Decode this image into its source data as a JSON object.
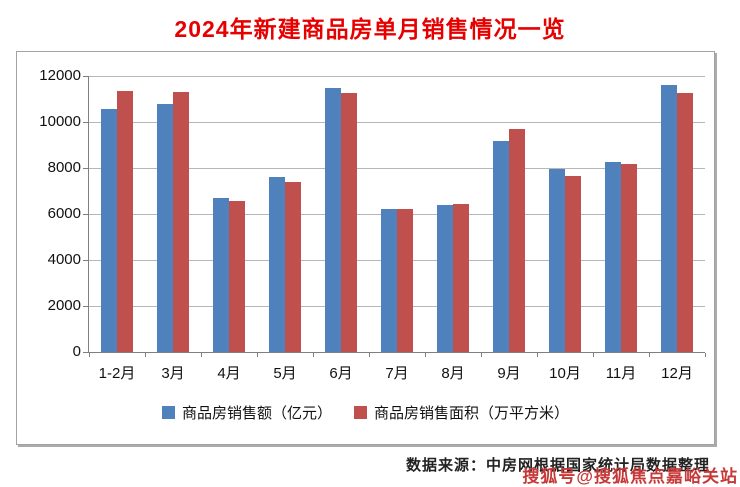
{
  "title": "2024年新建商品房单月销售情况一览",
  "colors": {
    "title": "#e60000",
    "series_amount": "#4F81BD",
    "series_area": "#C0504D",
    "gridline": "#b7b7b7",
    "axis": "#7f7f7f",
    "box_border": "#a3a3a3",
    "watermark": "#c73939"
  },
  "chart_data": {
    "type": "bar",
    "title": "2024年新建商品房单月销售情况一览",
    "categories": [
      "1-2月",
      "3月",
      "4月",
      "5月",
      "6月",
      "7月",
      "8月",
      "9月",
      "10月",
      "11月",
      "12月"
    ],
    "series": [
      {
        "name": "商品房销售额（亿元）",
        "color": "#4F81BD",
        "values": [
          10566,
          10789,
          6712,
          7598,
          11468,
          6197,
          6393,
          9157,
          7975,
          8270,
          11625
        ]
      },
      {
        "name": "商品房销售面积（万平方米）",
        "color": "#C0504D",
        "values": [
          11369,
          11299,
          6584,
          7390,
          11274,
          6233,
          6453,
          9682,
          7646,
          8188,
          11267
        ]
      }
    ],
    "xlabel": "",
    "ylabel": "",
    "ylim": [
      0,
      12000
    ],
    "ytick_step": 2000,
    "grid": true,
    "legend_position": "bottom"
  },
  "footer": {
    "source": "数据来源：中房网根据国家统计局数据整理",
    "watermark": "搜狐号@搜狐焦点嘉峪关站"
  }
}
